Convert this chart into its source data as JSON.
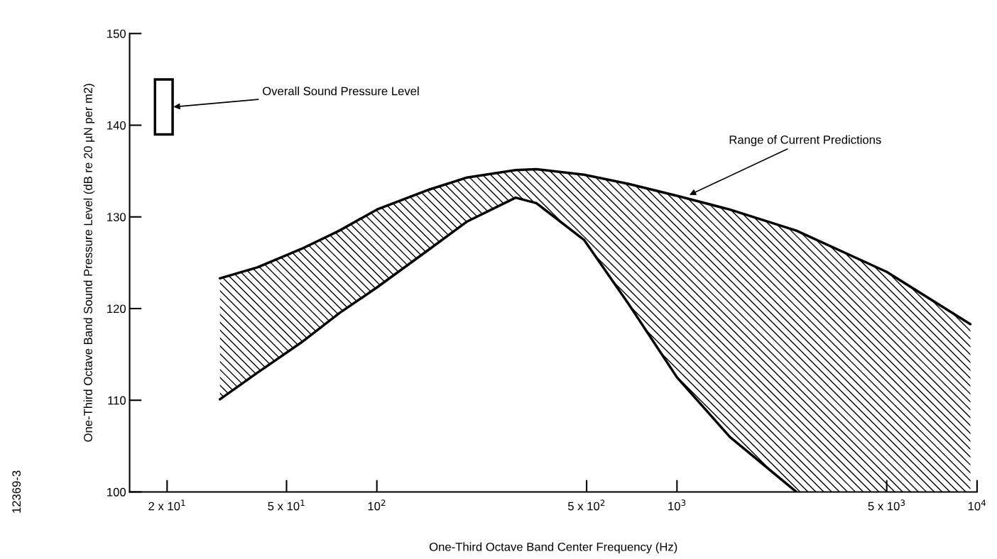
{
  "chart_data": {
    "type": "line",
    "xlabel": "One-Third Octave Band Center Frequency (Hz)",
    "ylabel": "One-Third Octave Band Sound Pressure Level (dB re 20 µN per m2)",
    "log": "x",
    "xlim": [
      15,
      10000
    ],
    "ylim": [
      100,
      150
    ],
    "xticks": [
      {
        "value": 20,
        "label": "2 x 10$^{1}$"
      },
      {
        "value": 50,
        "label": "5 x 10$^{1}$"
      },
      {
        "value": 100,
        "label": "10$^{2}$"
      },
      {
        "value": 500,
        "label": "5 x 10$^{2}$"
      },
      {
        "value": 1000,
        "label": "10$^{3}$"
      },
      {
        "value": 5000,
        "label": "5 x 10$^{3}$"
      },
      {
        "value": 10000,
        "label": "10$^{4}$"
      }
    ],
    "yticks": [
      100,
      110,
      120,
      130,
      140,
      150
    ],
    "grid": false,
    "legend": false,
    "series": [
      {
        "color": "#000000",
        "x": [
          30,
          40,
          56,
          75,
          100,
          150,
          200,
          290,
          340,
          490,
          690,
          1000,
          1500,
          2500,
          5000,
          9500
        ],
        "values": [
          123.3,
          124.5,
          126.5,
          128.5,
          130.8,
          133,
          134.3,
          135.1,
          135.2,
          134.6,
          133.6,
          132.3,
          130.8,
          128.5,
          124,
          118.3
        ],
        "lower": [
          110.1,
          113,
          116.3,
          119.5,
          122.3,
          126.5,
          129.5,
          132.1,
          131.5,
          127.5,
          120.5,
          112.5,
          106,
          100,
          100,
          100
        ],
        "upper": [
          123.3,
          124.5,
          126.5,
          128.5,
          130.8,
          133,
          134.3,
          135.1,
          135.2,
          134.6,
          133.6,
          132.3,
          130.8,
          128.5,
          124,
          118.3
        ]
      },
      {
        "color": "#000000",
        "x": [
          30,
          40,
          56,
          75,
          100,
          150,
          200,
          290,
          340,
          490,
          690,
          1000,
          1500,
          2500
        ],
        "values": [
          110.1,
          113,
          116.3,
          119.5,
          122.3,
          126.5,
          129.5,
          132.1,
          131.5,
          127.5,
          120.5,
          112.5,
          106,
          100
        ]
      },
      {
        "type": "bar",
        "color": "#000000",
        "x": [
          19.5
        ],
        "base": [
          139
        ],
        "values": [
          6
        ]
      }
    ],
    "annotations": [
      {
        "text": "Overall Sound Pressure Level",
        "x": 21,
        "y": 142
      },
      {
        "text": "Range of Current Predictions",
        "x": 1100,
        "y": 132.4
      },
      "12369-3"
    ]
  }
}
